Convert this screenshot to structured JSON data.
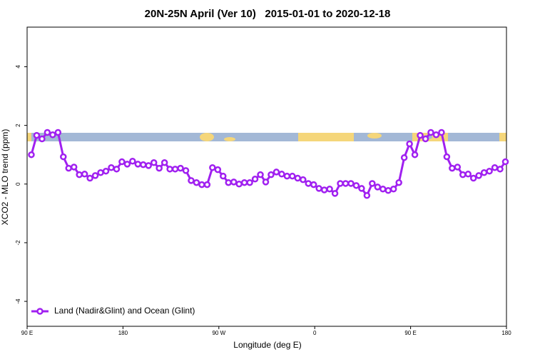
{
  "chart_data": {
    "type": "line",
    "title": "20N-25N April (Ver 10)   2015-01-01 to 2020-12-18",
    "x_label": "Longitude (deg E)",
    "y_label": "XCO2 - MLO trend (ppm)",
    "x": [
      94,
      99,
      104,
      109,
      114,
      119,
      124,
      129,
      134,
      139,
      144,
      149,
      154,
      159,
      164,
      169,
      174,
      179,
      184,
      189,
      194,
      199,
      204,
      209,
      214,
      219,
      224,
      229,
      234,
      239,
      244,
      249,
      254,
      259,
      264,
      269,
      274,
      279,
      284,
      289,
      294,
      299,
      304,
      309,
      314,
      319,
      324,
      329,
      334,
      339,
      344,
      349,
      354,
      359,
      364,
      369,
      374,
      379,
      384,
      389,
      394,
      399,
      404,
      409,
      414,
      419,
      424,
      429,
      434,
      439,
      444,
      449,
      454,
      459,
      464,
      469,
      474,
      479,
      484,
      489,
      494,
      499,
      504,
      509,
      514,
      519,
      524,
      529,
      534,
      539
    ],
    "series": [
      {
        "name": "Land (Nadir&Glint) and Ocean (Glint)",
        "color": "#a020f0",
        "values": [
          1.0,
          1.66,
          1.54,
          1.76,
          1.68,
          1.76,
          0.93,
          0.54,
          0.58,
          0.32,
          0.34,
          0.2,
          0.29,
          0.39,
          0.44,
          0.56,
          0.51,
          0.76,
          0.68,
          0.78,
          0.68,
          0.66,
          0.63,
          0.73,
          0.54,
          0.73,
          0.51,
          0.51,
          0.54,
          0.46,
          0.12,
          0.05,
          -0.02,
          -0.02,
          0.56,
          0.49,
          0.27,
          0.05,
          0.07,
          0.0,
          0.05,
          0.05,
          0.17,
          0.32,
          0.07,
          0.32,
          0.41,
          0.34,
          0.27,
          0.27,
          0.2,
          0.15,
          0.02,
          -0.02,
          -0.15,
          -0.2,
          -0.17,
          -0.32,
          0.02,
          0.02,
          0.02,
          -0.05,
          -0.15,
          -0.39,
          0.02,
          -0.1,
          -0.17,
          -0.22,
          -0.17,
          0.05,
          0.9,
          1.37,
          1.0,
          1.66,
          1.54,
          1.76,
          1.68,
          1.76,
          0.93,
          0.54,
          0.58,
          0.32,
          0.34,
          0.2,
          0.29,
          0.39,
          0.44,
          0.56,
          0.51,
          0.76
        ]
      }
    ],
    "xlim": [
      90,
      540
    ],
    "xticks": [
      {
        "value": 90,
        "label": "90 E"
      },
      {
        "value": 180,
        "label": "180"
      },
      {
        "value": 270,
        "label": "90 W"
      },
      {
        "value": 360,
        "label": "0"
      },
      {
        "value": 450,
        "label": "90 E"
      },
      {
        "value": 540,
        "label": "180"
      }
    ],
    "ylim": [
      -4.85,
      5.35
    ],
    "yticks": [
      -4,
      -2,
      0,
      2,
      4
    ],
    "grid": false,
    "legend": "bottomleft"
  }
}
